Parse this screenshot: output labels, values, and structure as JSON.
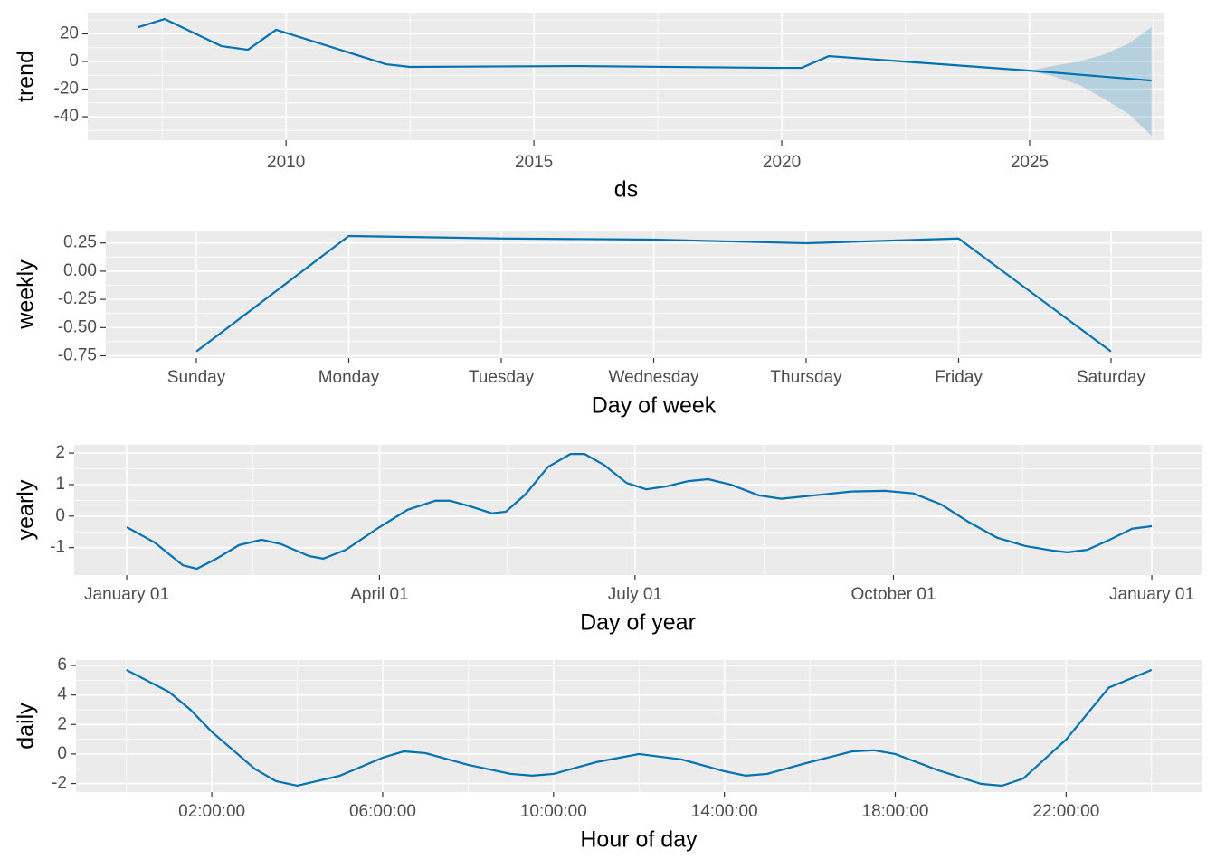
{
  "chart_data": [
    {
      "type": "line",
      "x_label": "ds",
      "y_label": "trend",
      "color": "#0072B2",
      "x": [
        2007.02,
        2007.55,
        2008.7,
        2009.23,
        2009.8,
        2012.02,
        2012.5,
        2015.9,
        2019.9,
        2020.4,
        2020.95,
        2025.0,
        2027.46
      ],
      "values": [
        24.9,
        30.8,
        11.1,
        8.5,
        23,
        -2,
        -3.9,
        -3.3,
        -4.6,
        -4.6,
        3.9,
        -6.6,
        -13.8
      ],
      "band": {
        "color": "#0072B2",
        "x": [
          2025.0,
          2025.5,
          2026.0,
          2026.5,
          2027.0,
          2027.46
        ],
        "lower": [
          -6.6,
          -11,
          -17,
          -27,
          -38,
          -53.8
        ],
        "upper": [
          -6.6,
          -3,
          0,
          5,
          13,
          24.9
        ]
      },
      "xlim": [
        2006.0,
        2027.72
      ],
      "xticks": [
        2010,
        2015,
        2020,
        2025
      ],
      "x_minor_ticks": [
        2007.5,
        2012.5,
        2017.5,
        2022.5,
        2027.5
      ],
      "ylim": [
        -57,
        35.4
      ],
      "yticks": [
        -40,
        -20,
        0,
        20
      ],
      "y_minor_ticks": [
        -50,
        -30,
        -10,
        10,
        30
      ],
      "grid": true
    },
    {
      "type": "line",
      "x_label": "Day of week",
      "y_label": "weekly",
      "color": "#0072B2",
      "categories": [
        "Sunday",
        "Monday",
        "Tuesday",
        "Wednesday",
        "Thursday",
        "Friday",
        "Saturday"
      ],
      "values": [
        -0.712,
        0.312,
        0.29,
        0.28,
        0.248,
        0.29,
        -0.712
      ],
      "ylim": [
        -0.77,
        0.36
      ],
      "yticks": [
        -0.75,
        {
          "value": -0.5,
          "label": "-0.50"
        },
        -0.25,
        {
          "value": 0,
          "label": "0.00"
        },
        0.25
      ],
      "y_minor_ticks": [
        -0.625,
        -0.375,
        -0.125,
        0.125
      ],
      "grid": true
    },
    {
      "type": "line",
      "x_label": "Day of year",
      "y_label": "yearly",
      "color": "#0072B2",
      "x": [
        0,
        10,
        20,
        25,
        32,
        40,
        48,
        55,
        65,
        70,
        78,
        90,
        100,
        110,
        115,
        122,
        130,
        135,
        142,
        150,
        158,
        163,
        170,
        178,
        185,
        192,
        200,
        207,
        215,
        225,
        233,
        245,
        258,
        270,
        280,
        290,
        300,
        310,
        320,
        330,
        335,
        342,
        350,
        358,
        365
      ],
      "values": [
        -0.35,
        -0.84,
        -1.56,
        -1.67,
        -1.35,
        -0.92,
        -0.75,
        -0.89,
        -1.27,
        -1.35,
        -1.07,
        -0.35,
        0.2,
        0.49,
        0.49,
        0.32,
        0.09,
        0.14,
        0.69,
        1.56,
        1.97,
        1.97,
        1.62,
        1.05,
        0.85,
        0.94,
        1.11,
        1.17,
        1.0,
        0.66,
        0.55,
        0.66,
        0.78,
        0.8,
        0.72,
        0.37,
        -0.2,
        -0.69,
        -0.95,
        -1.1,
        -1.15,
        -1.07,
        -0.75,
        -0.4,
        -0.32
      ],
      "xlim": [
        -18.7,
        382.7
      ],
      "xticks": [
        {
          "value": 0,
          "label": "January 01"
        },
        {
          "value": 90,
          "label": "April 01"
        },
        {
          "value": 181,
          "label": "July 01"
        },
        {
          "value": 273,
          "label": "October 01"
        },
        {
          "value": 365,
          "label": "January 01"
        }
      ],
      "x_minor_ticks": [
        45,
        135.5,
        227,
        319
      ],
      "ylim": [
        -1.87,
        2.26
      ],
      "yticks": [
        -1,
        0,
        1,
        2
      ],
      "y_minor_ticks": [
        -0.5,
        0.5,
        1.5
      ],
      "grid": true
    },
    {
      "type": "line",
      "x_label": "Hour of day",
      "y_label": "daily",
      "color": "#0072B2",
      "x": [
        0,
        1,
        1.5,
        2,
        3,
        3.5,
        4,
        5,
        6,
        6.5,
        7,
        8,
        9,
        9.5,
        10,
        11,
        12,
        13,
        14,
        14.5,
        15,
        16,
        17,
        17.5,
        18,
        19,
        20,
        20.5,
        21,
        22,
        23,
        24
      ],
      "values": [
        5.7,
        4.2,
        3.0,
        1.5,
        -1.0,
        -1.84,
        -2.15,
        -1.47,
        -0.25,
        0.18,
        0.06,
        -0.74,
        -1.35,
        -1.47,
        -1.35,
        -0.55,
        0,
        -0.37,
        -1.17,
        -1.47,
        -1.35,
        -0.55,
        0.18,
        0.25,
        0,
        -1.1,
        -2.02,
        -2.15,
        -1.66,
        0.98,
        4.5,
        5.7
      ],
      "xlim": [
        -1.18,
        25.17
      ],
      "xticks": [
        {
          "value": 2,
          "label": "02:00:00"
        },
        {
          "value": 6,
          "label": "06:00:00"
        },
        {
          "value": 10,
          "label": "10:00:00"
        },
        {
          "value": 14,
          "label": "14:00:00"
        },
        {
          "value": 18,
          "label": "18:00:00"
        },
        {
          "value": 22,
          "label": "22:00:00"
        }
      ],
      "x_minor_ticks": [
        0,
        4,
        8,
        12,
        16,
        20,
        24
      ],
      "ylim": [
        -2.58,
        6.37
      ],
      "yticks": [
        -2,
        0,
        2,
        4,
        6
      ],
      "y_minor_ticks": [
        -1,
        1,
        3,
        5
      ],
      "grid": true
    }
  ]
}
